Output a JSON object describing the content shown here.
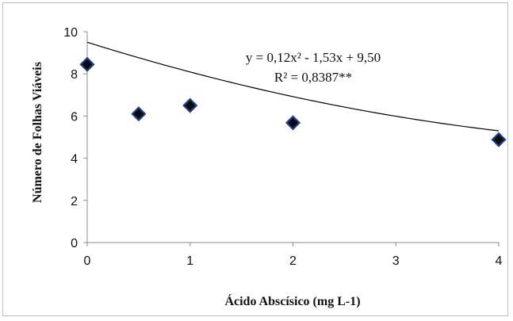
{
  "chart_data": {
    "type": "scatter",
    "title": "",
    "xlabel": "Ácido Abscísico (mg L-1)",
    "ylabel": "Número de Folhas Viáveis",
    "x_ticks": [
      0,
      1,
      2,
      3,
      4
    ],
    "y_ticks": [
      0,
      2,
      4,
      6,
      8,
      10
    ],
    "xlim": [
      0,
      4
    ],
    "ylim": [
      0,
      10
    ],
    "grid": false,
    "legend": "none",
    "points": [
      {
        "x": 0,
        "y": 8.45
      },
      {
        "x": 0.5,
        "y": 6.1
      },
      {
        "x": 1,
        "y": 6.5
      },
      {
        "x": 2,
        "y": 5.68
      },
      {
        "x": 4,
        "y": 4.88
      }
    ],
    "trendline": {
      "type": "polynomial-2",
      "coefficients": {
        "a": 0.12,
        "b": -1.53,
        "c": 9.5
      },
      "equation_text": "y = 0,12x² - 1,53x + 9,50",
      "r2_text": "R² = 0,8387**"
    },
    "marker_color": "#1f3f8f",
    "line_color": "#000000"
  }
}
